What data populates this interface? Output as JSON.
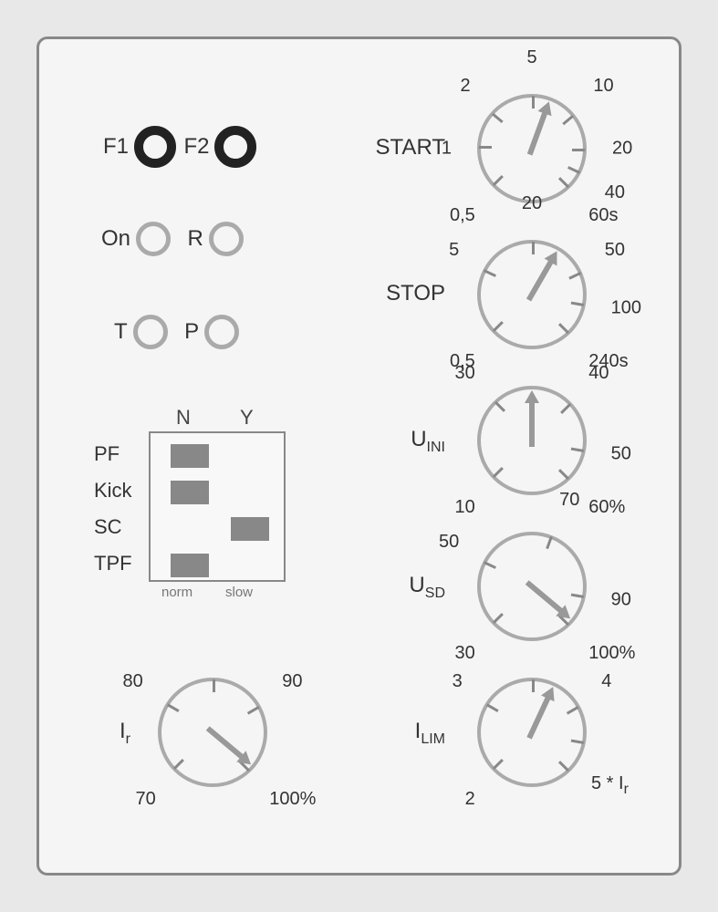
{
  "colors": {
    "panel_bg": "#f5f5f5",
    "panel_border": "#888888",
    "led_black": "#222222",
    "led_gray": "#aaaaaa",
    "dip_switch": "#888888",
    "dial_border": "#aaaaaa",
    "arrow": "#999999",
    "text": "#333333",
    "text_muted": "#777777"
  },
  "leds": {
    "row1": [
      {
        "label": "F1",
        "style": "black"
      },
      {
        "label": "F2",
        "style": "black"
      }
    ],
    "row2": [
      {
        "label": "On",
        "style": "gray"
      },
      {
        "label": "R",
        "style": "gray"
      }
    ],
    "row3": [
      {
        "label": "T",
        "style": "gray"
      },
      {
        "label": "P",
        "style": "gray"
      }
    ]
  },
  "dip": {
    "col_headers": [
      "N",
      "Y"
    ],
    "col_footers": [
      "norm",
      "slow"
    ],
    "rows": [
      {
        "label": "PF",
        "pos": 0
      },
      {
        "label": "Kick",
        "pos": 0
      },
      {
        "label": "SC",
        "pos": 1
      },
      {
        "label": "TPF",
        "pos": 0
      }
    ]
  },
  "dials": {
    "start": {
      "name": "START",
      "arrow_angle": 20,
      "ticks": [
        {
          "angle": -135,
          "label": "0,5"
        },
        {
          "angle": -90,
          "label": "1"
        },
        {
          "angle": -50,
          "label": "2"
        },
        {
          "angle": 0,
          "label": "5"
        },
        {
          "angle": 50,
          "label": "10"
        },
        {
          "angle": 90,
          "label": "20"
        },
        {
          "angle": 115,
          "label": "40"
        },
        {
          "angle": 135,
          "label": "60s"
        }
      ]
    },
    "stop": {
      "name": "STOP",
      "arrow_angle": 30,
      "ticks": [
        {
          "angle": -135,
          "label": "0,5"
        },
        {
          "angle": -65,
          "label": "5"
        },
        {
          "angle": 0,
          "label": "20"
        },
        {
          "angle": 65,
          "label": "50"
        },
        {
          "angle": 100,
          "label": "100"
        },
        {
          "angle": 135,
          "label": "240s"
        }
      ]
    },
    "uini": {
      "name_main": "U",
      "name_sub": "INI",
      "arrow_angle": 0,
      "ticks": [
        {
          "angle": -135,
          "label": "10"
        },
        {
          "angle": -45,
          "label": "30"
        },
        {
          "angle": 45,
          "label": "40"
        },
        {
          "angle": 100,
          "label": "50"
        },
        {
          "angle": 135,
          "label": "60%"
        }
      ]
    },
    "usd": {
      "name_main": "U",
      "name_sub": "SD",
      "arrow_angle": 130,
      "ticks": [
        {
          "angle": -135,
          "label": "30"
        },
        {
          "angle": -65,
          "label": "50"
        },
        {
          "angle": 20,
          "label": "70"
        },
        {
          "angle": 100,
          "label": "90"
        },
        {
          "angle": 135,
          "label": "100%"
        }
      ]
    },
    "ir": {
      "name_main": "I",
      "name_sub": "r",
      "arrow_angle": 130,
      "ticks": [
        {
          "angle": -135,
          "label": "70"
        },
        {
          "angle": -60,
          "label": "80"
        },
        {
          "angle": 0,
          "label": ""
        },
        {
          "angle": 60,
          "label": "90"
        },
        {
          "angle": 135,
          "label": "100%"
        }
      ]
    },
    "ilim": {
      "name_main": "I",
      "name_sub": "LIM",
      "arrow_angle": 25,
      "suffix": "5 * I",
      "suffix_sub": "r",
      "ticks": [
        {
          "angle": -135,
          "label": "2"
        },
        {
          "angle": -60,
          "label": "3"
        },
        {
          "angle": 0,
          "label": ""
        },
        {
          "angle": 60,
          "label": "4"
        },
        {
          "angle": 100,
          "label": ""
        },
        {
          "angle": 135,
          "label": ""
        }
      ]
    }
  }
}
